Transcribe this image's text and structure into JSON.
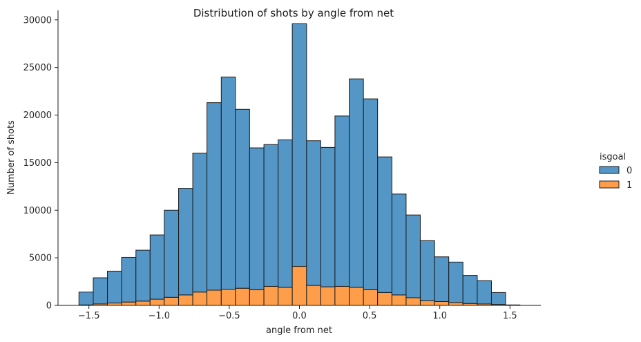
{
  "chart_data": {
    "type": "bar",
    "title": "Distribution of shots by angle from net",
    "xlabel": "angle from net",
    "ylabel": "Number of shots",
    "xlim": [
      -1.72,
      1.72
    ],
    "ylim": [
      0,
      31000
    ],
    "x_ticks": [
      -1.5,
      -1.0,
      -0.5,
      0.0,
      0.5,
      1.0,
      1.5
    ],
    "x_tick_labels": [
      "−1.5",
      "−1.0",
      "−0.5",
      "0.0",
      "0.5",
      "1.0",
      "1.5"
    ],
    "y_ticks": [
      0,
      5000,
      10000,
      15000,
      20000,
      25000,
      30000
    ],
    "y_tick_labels": [
      "0",
      "5000",
      "10000",
      "15000",
      "20000",
      "25000",
      "30000"
    ],
    "multiple": "stack",
    "bin_range": [
      -1.5708,
      1.5708
    ],
    "bin_count": 31,
    "bin_left_edges": [
      -1.571,
      -1.469,
      -1.368,
      -1.267,
      -1.165,
      -1.064,
      -0.963,
      -0.861,
      -0.76,
      -0.659,
      -0.557,
      -0.456,
      -0.355,
      -0.253,
      -0.152,
      -0.051,
      0.051,
      0.152,
      0.253,
      0.355,
      0.456,
      0.557,
      0.659,
      0.76,
      0.861,
      0.963,
      1.064,
      1.165,
      1.267,
      1.368,
      1.469
    ],
    "bin_right_edges": [
      -1.469,
      -1.368,
      -1.267,
      -1.165,
      -1.064,
      -0.963,
      -0.861,
      -0.76,
      -0.659,
      -0.557,
      -0.456,
      -0.355,
      -0.253,
      -0.152,
      -0.051,
      0.051,
      0.152,
      0.253,
      0.355,
      0.456,
      0.557,
      0.659,
      0.76,
      0.861,
      0.963,
      1.064,
      1.165,
      1.267,
      1.368,
      1.469,
      1.571
    ],
    "legend_title": "isgoal",
    "legend_position": "right",
    "grid": false,
    "series": [
      {
        "name": "1",
        "color": "#ff9e4a",
        "values": [
          50,
          150,
          250,
          350,
          450,
          650,
          850,
          1100,
          1400,
          1600,
          1700,
          1800,
          1650,
          2000,
          1900,
          4100,
          2100,
          1950,
          2000,
          1900,
          1650,
          1350,
          1100,
          800,
          500,
          400,
          300,
          200,
          150,
          100,
          50
        ]
      },
      {
        "name": "0",
        "color": "#5496c6",
        "values": [
          1350,
          2750,
          3350,
          4700,
          5350,
          6750,
          9150,
          11200,
          14600,
          19700,
          22300,
          18800,
          14900,
          14900,
          15500,
          25500,
          15200,
          14650,
          17900,
          21900,
          20050,
          14250,
          10600,
          8700,
          6300,
          4700,
          4250,
          2950,
          2450,
          1250,
          0
        ]
      }
    ]
  },
  "colors": {
    "edge": "#1a1a1a",
    "axis": "#1a1a1a",
    "text": "#262626"
  }
}
